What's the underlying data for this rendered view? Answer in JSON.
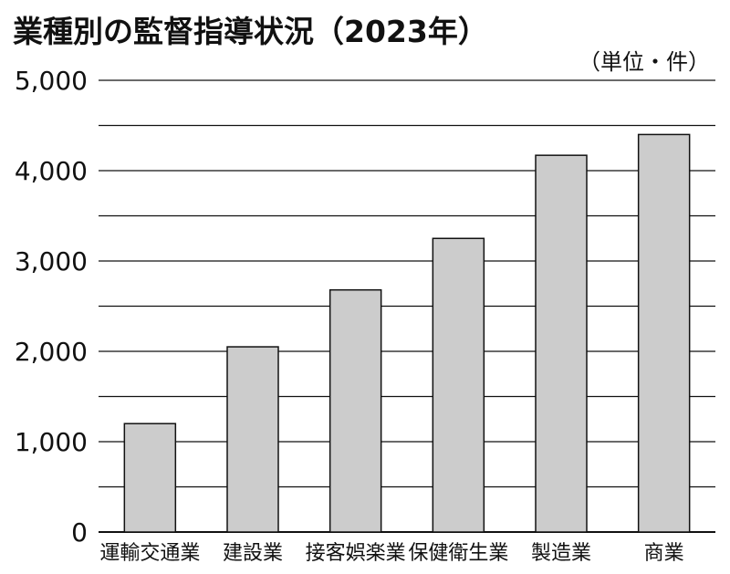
{
  "chart_data": {
    "type": "bar",
    "title": "業種別の監督指導状況（2023年）",
    "unit_label": "（単位・件）",
    "categories": [
      "運輸交通業",
      "建設業",
      "接客娯楽業",
      "保健衛生業",
      "製造業",
      "商業"
    ],
    "values": [
      1200,
      2050,
      2680,
      3250,
      4170,
      4400
    ],
    "ylim": [
      0,
      5000
    ],
    "yticks": [
      0,
      1000,
      2000,
      3000,
      4000,
      5000
    ],
    "ytick_labels": [
      "0",
      "1,000",
      "2,000",
      "3,000",
      "4,000",
      "5,000"
    ],
    "grid": true,
    "xlabel": "",
    "ylabel": "",
    "bar_color": "#cccccc",
    "bar_edge_color": "#111111"
  }
}
